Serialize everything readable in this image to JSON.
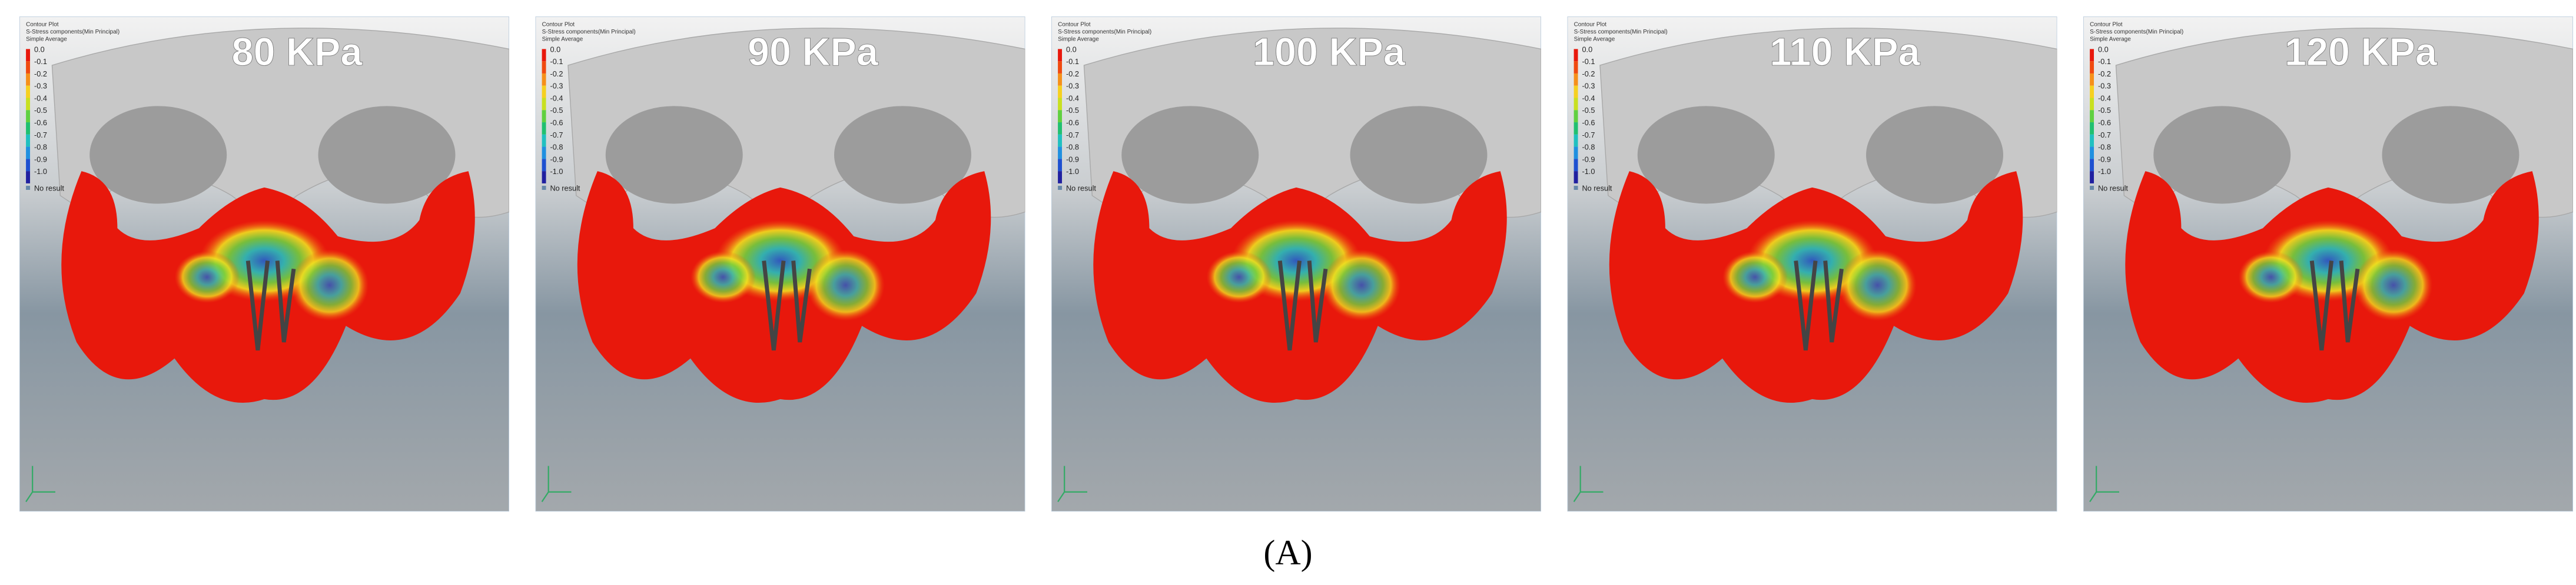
{
  "panels": [
    {
      "title": "80 KPa"
    },
    {
      "title": "90 KPa"
    },
    {
      "title": "100 KPa"
    },
    {
      "title": "110 KPa"
    },
    {
      "title": "120 KPa"
    }
  ],
  "legend": {
    "header": [
      "Contour Plot",
      "S-Stress components(Min Principal)",
      "Simple Average"
    ],
    "values": [
      "0.0",
      "-0.1",
      "-0.2",
      "-0.3",
      "-0.4",
      "-0.5",
      "-0.6",
      "-0.7",
      "-0.8",
      "-0.9",
      "-1.0"
    ],
    "no_result": "No result"
  },
  "caption": "(A)"
}
